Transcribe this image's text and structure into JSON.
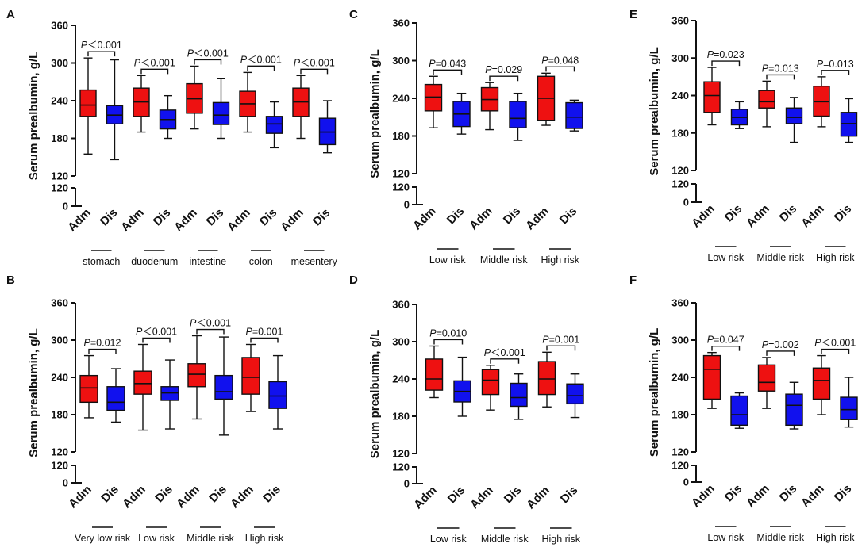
{
  "figure": {
    "description_colors": {
      "admission": "#ee1111",
      "discharge": "#1111ee",
      "axis": "#111111"
    }
  },
  "chart_data": [
    {
      "panel": "A",
      "type": "box",
      "ylabel": "Serum prealbumin, g/L",
      "yticks_upper": [
        120,
        180,
        240,
        300,
        360
      ],
      "yticks_lower": [
        0,
        120
      ],
      "ylim_upper": [
        120,
        360
      ],
      "xlabels": [
        "Adm",
        "Dis"
      ],
      "groups": [
        {
          "name": "stomach",
          "p": "P＜0.001",
          "adm": {
            "min": 155,
            "q1": 215,
            "median": 233,
            "q3": 257,
            "max": 308
          },
          "dis": {
            "min": 146,
            "q1": 203,
            "median": 217,
            "q3": 232,
            "max": 305
          }
        },
        {
          "name": "duodenum",
          "p": "P＜0.001",
          "adm": {
            "min": 190,
            "q1": 215,
            "median": 238,
            "q3": 260,
            "max": 280
          },
          "dis": {
            "min": 180,
            "q1": 195,
            "median": 210,
            "q3": 225,
            "max": 248
          }
        },
        {
          "name": "intestine",
          "p": "P＜0.001",
          "adm": {
            "min": 195,
            "q1": 220,
            "median": 243,
            "q3": 267,
            "max": 295
          },
          "dis": {
            "min": 180,
            "q1": 202,
            "median": 217,
            "q3": 237,
            "max": 275
          }
        },
        {
          "name": "colon",
          "p": "P＜0.001",
          "adm": {
            "min": 190,
            "q1": 215,
            "median": 235,
            "q3": 255,
            "max": 285
          },
          "dis": {
            "min": 165,
            "q1": 188,
            "median": 203,
            "q3": 215,
            "max": 238
          }
        },
        {
          "name": "mesentery",
          "p": "P＜0.001",
          "adm": {
            "min": 180,
            "q1": 215,
            "median": 238,
            "q3": 260,
            "max": 280
          },
          "dis": {
            "min": 157,
            "q1": 170,
            "median": 190,
            "q3": 212,
            "max": 240
          }
        }
      ]
    },
    {
      "panel": "B",
      "type": "box",
      "ylabel": "Serum prealbumin, g/L",
      "yticks_upper": [
        120,
        180,
        240,
        300,
        360
      ],
      "yticks_lower": [
        0,
        120
      ],
      "ylim_upper": [
        120,
        360
      ],
      "xlabels": [
        "Adm",
        "Dis"
      ],
      "groups": [
        {
          "name": "Very low risk",
          "p": "P=0.012",
          "adm": {
            "min": 175,
            "q1": 200,
            "median": 223,
            "q3": 243,
            "max": 275
          },
          "dis": {
            "min": 168,
            "q1": 187,
            "median": 200,
            "q3": 225,
            "max": 254
          }
        },
        {
          "name": "Low risk",
          "p": "P＜0.001",
          "adm": {
            "min": 155,
            "q1": 213,
            "median": 230,
            "q3": 250,
            "max": 293
          },
          "dis": {
            "min": 157,
            "q1": 203,
            "median": 215,
            "q3": 225,
            "max": 268
          }
        },
        {
          "name": "Middle risk",
          "p": "P＜0.001",
          "adm": {
            "min": 173,
            "q1": 225,
            "median": 245,
            "q3": 262,
            "max": 307
          },
          "dis": {
            "min": 147,
            "q1": 205,
            "median": 217,
            "q3": 243,
            "max": 305
          }
        },
        {
          "name": "High risk",
          "p": "P=0.001",
          "adm": {
            "min": 185,
            "q1": 213,
            "median": 240,
            "q3": 272,
            "max": 293
          },
          "dis": {
            "min": 157,
            "q1": 190,
            "median": 210,
            "q3": 233,
            "max": 275
          }
        }
      ]
    },
    {
      "panel": "C",
      "type": "box",
      "ylabel": "Serum prealbumin, g/L",
      "yticks_upper": [
        120,
        180,
        240,
        300,
        360
      ],
      "yticks_lower": [
        0,
        120
      ],
      "ylim_upper": [
        120,
        360
      ],
      "xlabels": [
        "Adm",
        "Dis"
      ],
      "groups": [
        {
          "name": "Low risk",
          "p": "P=0.043",
          "adm": {
            "min": 193,
            "q1": 220,
            "median": 242,
            "q3": 262,
            "max": 275
          },
          "dis": {
            "min": 183,
            "q1": 195,
            "median": 215,
            "q3": 235,
            "max": 248
          }
        },
        {
          "name": "Middle risk",
          "p": "P=0.029",
          "adm": {
            "min": 190,
            "q1": 220,
            "median": 238,
            "q3": 257,
            "max": 265
          },
          "dis": {
            "min": 173,
            "q1": 193,
            "median": 208,
            "q3": 235,
            "max": 248
          }
        },
        {
          "name": "High risk",
          "p": "P=0.048",
          "adm": {
            "min": 197,
            "q1": 205,
            "median": 240,
            "q3": 275,
            "max": 280
          },
          "dis": {
            "min": 188,
            "q1": 192,
            "median": 210,
            "q3": 233,
            "max": 237
          }
        }
      ]
    },
    {
      "panel": "D",
      "type": "box",
      "ylabel": "Serum prealbumin, g/L",
      "yticks_upper": [
        120,
        180,
        240,
        300,
        360
      ],
      "yticks_lower": [
        0,
        120
      ],
      "ylim_upper": [
        120,
        360
      ],
      "xlabels": [
        "Adm",
        "Dis"
      ],
      "groups": [
        {
          "name": "Low risk",
          "p": "P=0.010",
          "adm": {
            "min": 210,
            "q1": 222,
            "median": 240,
            "q3": 272,
            "max": 293
          },
          "dis": {
            "min": 180,
            "q1": 203,
            "median": 220,
            "q3": 237,
            "max": 275
          }
        },
        {
          "name": "Middle risk",
          "p": "P＜0.001",
          "adm": {
            "min": 190,
            "q1": 215,
            "median": 238,
            "q3": 255,
            "max": 262
          },
          "dis": {
            "min": 175,
            "q1": 196,
            "median": 210,
            "q3": 233,
            "max": 248
          }
        },
        {
          "name": "High risk",
          "p": "P=0.001",
          "adm": {
            "min": 195,
            "q1": 215,
            "median": 240,
            "q3": 268,
            "max": 283
          },
          "dis": {
            "min": 178,
            "q1": 200,
            "median": 213,
            "q3": 232,
            "max": 248
          }
        }
      ]
    },
    {
      "panel": "E",
      "type": "box",
      "ylabel": "Serum prealbumin, g/L",
      "yticks_upper": [
        120,
        180,
        240,
        300,
        360
      ],
      "yticks_lower": [
        0,
        120
      ],
      "ylim_upper": [
        120,
        360
      ],
      "xlabels": [
        "Adm",
        "Dis"
      ],
      "groups": [
        {
          "name": "Low risk",
          "p": "P=0.023",
          "adm": {
            "min": 193,
            "q1": 213,
            "median": 240,
            "q3": 262,
            "max": 285
          },
          "dis": {
            "min": 187,
            "q1": 193,
            "median": 205,
            "q3": 218,
            "max": 230
          }
        },
        {
          "name": "Middle risk",
          "p": "P=0.013",
          "adm": {
            "min": 190,
            "q1": 220,
            "median": 230,
            "q3": 248,
            "max": 263
          },
          "dis": {
            "min": 165,
            "q1": 195,
            "median": 205,
            "q3": 220,
            "max": 237
          }
        },
        {
          "name": "High risk",
          "p": "P=0.013",
          "adm": {
            "min": 190,
            "q1": 207,
            "median": 230,
            "q3": 255,
            "max": 270
          },
          "dis": {
            "min": 165,
            "q1": 175,
            "median": 195,
            "q3": 213,
            "max": 235
          }
        }
      ]
    },
    {
      "panel": "F",
      "type": "box",
      "ylabel": "Serum prealbumin, g/L",
      "yticks_upper": [
        120,
        180,
        240,
        300,
        360
      ],
      "yticks_lower": [
        0,
        120
      ],
      "ylim_upper": [
        120,
        360
      ],
      "xlabels": [
        "Adm",
        "Dis"
      ],
      "groups": [
        {
          "name": "Low risk",
          "p": "P=0.047",
          "adm": {
            "min": 190,
            "q1": 205,
            "median": 253,
            "q3": 275,
            "max": 280
          },
          "dis": {
            "min": 158,
            "q1": 163,
            "median": 180,
            "q3": 210,
            "max": 215
          }
        },
        {
          "name": "Middle risk",
          "p": "P=0.002",
          "adm": {
            "min": 190,
            "q1": 218,
            "median": 232,
            "q3": 260,
            "max": 272
          },
          "dis": {
            "min": 157,
            "q1": 163,
            "median": 195,
            "q3": 213,
            "max": 232
          }
        },
        {
          "name": "High risk",
          "p": "P＜0.001",
          "adm": {
            "min": 180,
            "q1": 205,
            "median": 235,
            "q3": 255,
            "max": 275
          },
          "dis": {
            "min": 160,
            "q1": 172,
            "median": 188,
            "q3": 208,
            "max": 240
          }
        }
      ]
    }
  ]
}
